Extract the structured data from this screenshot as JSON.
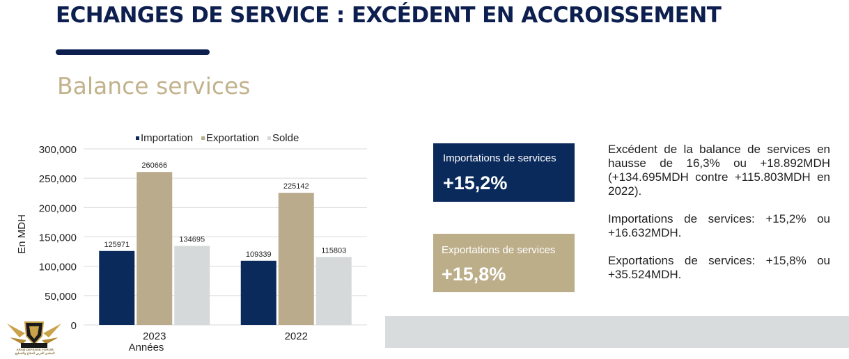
{
  "header": {
    "title": "ECHANGES DE SERVICE : EXCÉDENT EN ACCROISSEMENT",
    "subtitle": "Balance services"
  },
  "chart_data": {
    "type": "bar",
    "categories": [
      "2023",
      "2022"
    ],
    "series": [
      {
        "name": "Importation",
        "values": [
          125971,
          109339
        ],
        "color": "#0b2a5c"
      },
      {
        "name": "Exportation",
        "values": [
          260666,
          225142
        ],
        "color": "#b9ab8c"
      },
      {
        "name": "Solde",
        "values": [
          134695,
          115803
        ],
        "color": "#d6d9da"
      }
    ],
    "data_labels": [
      [
        "125971",
        "109339"
      ],
      [
        "260666",
        "225142"
      ],
      [
        "134695",
        "115803"
      ]
    ],
    "y_ticks": [
      "300,000",
      "250,000",
      "200,000",
      "150,000",
      "100,000",
      "50,000",
      "0"
    ],
    "ylim": [
      0,
      300000
    ],
    "xlabel": "Années",
    "ylabel": "En MDH",
    "legend_position": "top",
    "grid": true
  },
  "stats": {
    "importations": {
      "label": "Importations de services",
      "value": "+15,2%"
    },
    "exportations": {
      "label": "Exportations de services",
      "value": "+15,8%"
    }
  },
  "notes": [
    "Excédent de la balance de services en hausse de 16,3% ou +18.892MDH (+134.695MDH contre +115.803MDH en 2022).",
    "Importations de services: +15,2% ou +16.632MDH.",
    "Exportations de services: +15,8% ou +35.524MDH."
  ],
  "logo": {
    "caption_latin": "ARAB DEFENSE FORUM",
    "caption_arabic": "المنتدى العربي للدفاع والتسليح",
    "color": "#c9a24a"
  }
}
